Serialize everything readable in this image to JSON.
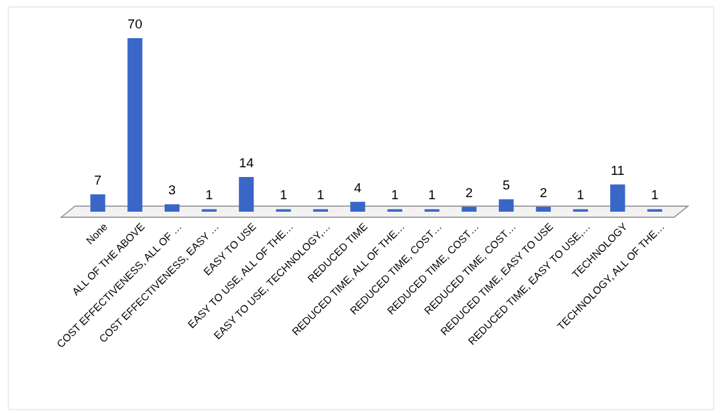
{
  "chart_data": {
    "type": "bar",
    "categories": [
      "None",
      "ALL OF THE ABOVE",
      "COST EFFECTIVENESS, ALL OF …",
      "COST EFFECTIVENESS, EASY …",
      "EASY TO USE",
      "EASY TO USE, ALL OF THE…",
      "EASY TO USE, TECHNOLOGY,…",
      "REDUCED TIME",
      "REDUCED TIME, ALL OF THE…",
      "REDUCED TIME, COST…",
      "REDUCED TIME, COST…",
      "REDUCED TIME, COST…",
      "REDUCED TIME, EASY TO USE",
      "REDUCED TIME, EASY TO USE,…",
      "TECHNOLOGY",
      "TECHNOLOGY, ALL OF THE…"
    ],
    "values": [
      7,
      70,
      3,
      1,
      14,
      1,
      1,
      4,
      1,
      1,
      2,
      5,
      2,
      1,
      11,
      1
    ],
    "color": "#3a66c8",
    "data_labels": true
  }
}
